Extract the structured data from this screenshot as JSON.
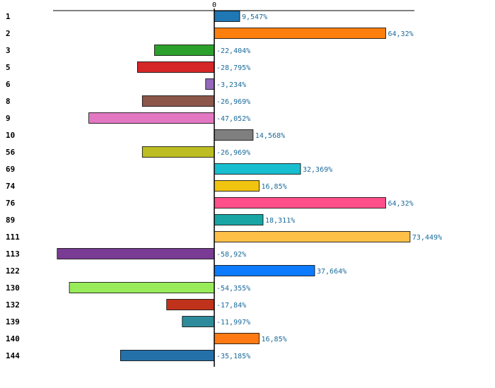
{
  "chart_data": {
    "type": "bar",
    "orientation": "horizontal",
    "title": "",
    "xlabel": "",
    "ylabel": "",
    "zero_tick_label": "0",
    "xlim": [
      -60,
      75
    ],
    "grid": false,
    "categories": [
      "1",
      "2",
      "3",
      "5",
      "6",
      "8",
      "9",
      "10",
      "56",
      "69",
      "74",
      "76",
      "89",
      "111",
      "113",
      "122",
      "130",
      "132",
      "139",
      "140",
      "144"
    ],
    "values": [
      9.547,
      64.32,
      -22.404,
      -28.795,
      -3.234,
      -26.969,
      -47.052,
      14.568,
      -26.969,
      32.369,
      16.85,
      64.32,
      18.311,
      73.449,
      -58.92,
      37.664,
      -54.355,
      -17.84,
      -11.997,
      16.85,
      -35.185
    ],
    "value_labels": [
      "9,547%",
      "64,32%",
      "-22,404%",
      "-28,795%",
      "-3,234%",
      "-26,969%",
      "-47,052%",
      "14,568%",
      "-26,969%",
      "32,369%",
      "16,85%",
      "64,32%",
      "18,311%",
      "73,449%",
      "-58,92%",
      "37,664%",
      "-54,355%",
      "-17,84%",
      "-11,997%",
      "16,85%",
      "-35,185%"
    ],
    "colors": [
      "#1f77b4",
      "#ff7f0e",
      "#2ca02c",
      "#d62728",
      "#9467bd",
      "#8c564b",
      "#e377c2",
      "#7f7f7f",
      "#bcbd22",
      "#17becf",
      "#f1c40f",
      "#ff4f8b",
      "#1aa5a5",
      "#ffc048",
      "#7a3b94",
      "#0d7bff",
      "#98ec5a",
      "#c0321b",
      "#2e8b9c",
      "#ff7a12",
      "#2470a8"
    ]
  }
}
